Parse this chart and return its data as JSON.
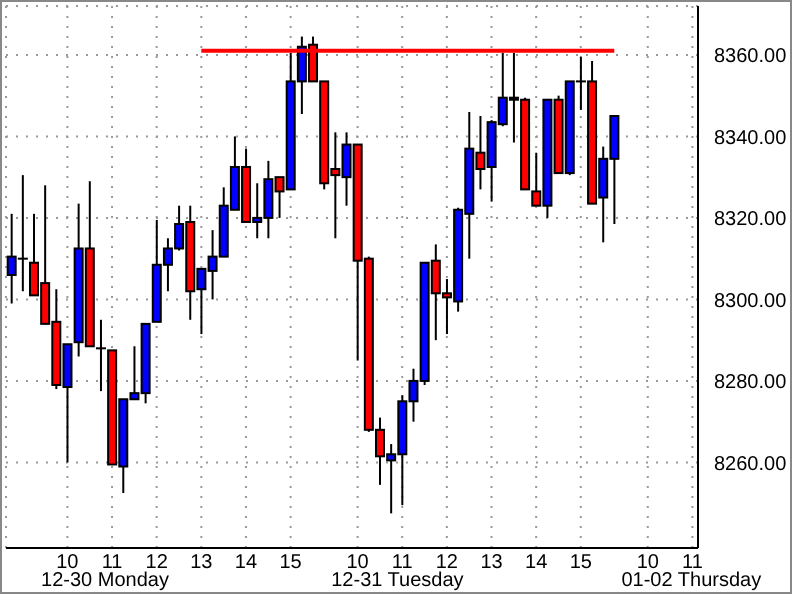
{
  "chart_data": {
    "type": "candlestick",
    "categories": [
      null,
      null,
      null,
      null,
      null,
      "10",
      null,
      null,
      null,
      "11",
      null,
      null,
      null,
      "12",
      null,
      null,
      null,
      "13",
      null,
      null,
      null,
      "14",
      null,
      null,
      null,
      "15",
      null,
      null,
      null,
      null,
      null,
      "10",
      null,
      null,
      null,
      "11",
      null,
      null,
      null,
      "12",
      null,
      null,
      null,
      "13",
      null,
      null,
      null,
      "14",
      null,
      null,
      null,
      "15",
      null,
      null,
      null,
      null,
      null,
      "10",
      null,
      null,
      null,
      "11"
    ],
    "annotations": [
      "12-30 Monday",
      "12-31 Tuesday",
      "01-02 Thursday"
    ],
    "ohlc": [
      [
        8306,
        8321,
        8299,
        8310.5
      ],
      [
        8310,
        8330.5,
        8302,
        8310
      ],
      [
        8309,
        8321,
        8301,
        8301
      ],
      [
        8304,
        8328,
        8294,
        8294
      ],
      [
        8294.5,
        8302.5,
        8278,
        8279
      ],
      [
        8278.5,
        8289,
        8260,
        8289
      ],
      [
        8289.5,
        8323.5,
        8286,
        8312.5
      ],
      [
        8312.5,
        8329,
        8288.5,
        8288.5
      ],
      [
        8288,
        8295,
        8277.5,
        8288
      ],
      [
        8287.5,
        8287.5,
        8259.5,
        8259.5
      ],
      [
        8259,
        8275.5,
        8252.5,
        8275.5
      ],
      [
        8275.5,
        8288.5,
        8275.5,
        8277
      ],
      [
        8277,
        8294,
        8274.5,
        8294
      ],
      [
        8294.5,
        8319.5,
        8294.5,
        8308.5
      ],
      [
        8308.5,
        8315,
        8302,
        8312.5
      ],
      [
        8312.5,
        8323,
        8312,
        8318.5
      ],
      [
        8319,
        8323,
        8295,
        8302
      ],
      [
        8302.5,
        8307.5,
        8291.5,
        8307.5
      ],
      [
        8307,
        8317,
        8300,
        8310.5
      ],
      [
        8310.5,
        8327.5,
        8310.5,
        8323
      ],
      [
        8322,
        8340,
        8322,
        8332.5
      ],
      [
        8332.5,
        8337,
        8319,
        8319
      ],
      [
        8319,
        8328.5,
        8315,
        8320
      ],
      [
        8320,
        8334,
        8315,
        8329.5
      ],
      [
        8330,
        8330,
        8320,
        8326.5
      ],
      [
        8327,
        8360.5,
        8327,
        8353.5
      ],
      [
        8353.5,
        8364.5,
        8345.5,
        8362
      ],
      [
        8362.5,
        8364.5,
        8353.5,
        8353.5
      ],
      [
        8353.5,
        8353.5,
        8327,
        8328.5
      ],
      [
        8332,
        8341,
        8315,
        8330.5
      ],
      [
        8330,
        8341,
        8323,
        8338
      ],
      [
        8338,
        8338,
        8285,
        8309.5
      ],
      [
        8310,
        8310.5,
        8267.5,
        8268
      ],
      [
        8268,
        8271,
        8254.5,
        8261.5
      ],
      [
        8260.5,
        8264.5,
        8247.5,
        8262
      ],
      [
        8262,
        8276.5,
        8249.5,
        8275
      ],
      [
        8275,
        8283,
        8270,
        8280
      ],
      [
        8280,
        8309,
        8279,
        8309
      ],
      [
        8309.5,
        8313.5,
        8290,
        8301.5
      ],
      [
        8301.5,
        8305,
        8291.5,
        8300.5
      ],
      [
        8299.5,
        8322.5,
        8297,
        8322
      ],
      [
        8321,
        8346,
        8310,
        8337
      ],
      [
        8336,
        8345,
        8327,
        8332
      ],
      [
        8332.5,
        8344,
        8324,
        8343.5
      ],
      [
        8343,
        8360.5,
        8342.5,
        8349.5
      ],
      [
        8349,
        8360.5,
        8338.5,
        8349.5
      ],
      [
        8349,
        8349.5,
        8327,
        8327
      ],
      [
        8326.5,
        8336,
        8323,
        8323
      ],
      [
        8323,
        8349,
        8320,
        8349
      ],
      [
        8349,
        8350,
        8331,
        8331
      ],
      [
        8331,
        8353.5,
        8330.5,
        8353.5
      ],
      [
        8353.5,
        8359.5,
        8346.5,
        8353.5
      ],
      [
        8353.5,
        8358.5,
        8323.5,
        8323.5
      ],
      [
        8325,
        8337.5,
        8314,
        8334.5
      ],
      [
        8334.5,
        8345,
        8318.5,
        8345
      ],
      null,
      null,
      null,
      null,
      null,
      null,
      null
    ],
    "colors": [
      "#0000ff",
      "#000000",
      "#ff0000",
      "#ff0000",
      "#ff0000",
      "#0000ff",
      "#0000ff",
      "#ff0000",
      "#ff0000",
      "#ff0000",
      "#0000ff",
      "#0000ff",
      "#0000ff",
      "#0000ff",
      "#0000ff",
      "#0000ff",
      "#ff0000",
      "#0000ff",
      "#0000ff",
      "#0000ff",
      "#0000ff",
      "#ff0000",
      "#0000ff",
      "#0000ff",
      "#ff0000",
      "#0000ff",
      "#0000ff",
      "#ff0000",
      "#ff0000",
      "#ff0000",
      "#0000ff",
      "#ff0000",
      "#ff0000",
      "#ff0000",
      "#0000ff",
      "#0000ff",
      "#0000ff",
      "#0000ff",
      "#ff0000",
      "#ff0000",
      "#0000ff",
      "#0000ff",
      "#ff0000",
      "#0000ff",
      "#0000ff",
      "#000000",
      "#ff0000",
      "#ff0000",
      "#0000ff",
      "#ff0000",
      "#0000ff",
      "#000000",
      "#ff0000",
      "#0000ff",
      "#0000ff",
      null,
      null,
      null,
      null,
      null,
      null,
      null
    ],
    "series": [
      {
        "type": "line",
        "color": "#ff0000",
        "values": [
          null,
          null,
          null,
          null,
          null,
          null,
          null,
          null,
          null,
          null,
          null,
          null,
          null,
          null,
          null,
          null,
          null,
          8361,
          8361,
          8361,
          8361,
          8361,
          8361,
          8361,
          8361,
          8361,
          8361,
          8361,
          8361,
          8361,
          8361,
          8361,
          8361,
          8361,
          8361,
          8361,
          8361,
          8361,
          8361,
          8361,
          8361,
          8361,
          8361,
          8361,
          8361,
          8361,
          8361,
          8361,
          8361,
          8361,
          8361,
          8361,
          8361,
          8361,
          8361,
          null,
          null,
          null,
          null,
          null,
          null,
          null
        ]
      }
    ],
    "ylim": [
      8239,
      8372
    ],
    "yticks": [
      {
        "value": 8260,
        "label": "8260.00"
      },
      {
        "value": 8280,
        "label": "8280.00"
      },
      {
        "value": 8300,
        "label": "8300.00"
      },
      {
        "value": 8320,
        "label": "8320.00"
      },
      {
        "value": 8340,
        "label": "8340.00"
      },
      {
        "value": 8360,
        "label": "8360.00"
      }
    ],
    "grid": true,
    "marker": "none"
  }
}
